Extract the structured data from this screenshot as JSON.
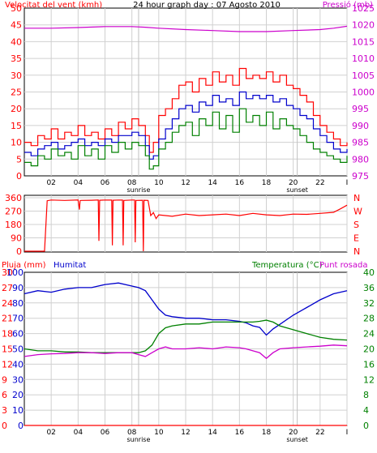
{
  "chart_data": [
    {
      "type": "line",
      "title": "24 hour graph day : 07 Agosto 2010",
      "ylabel_left": "Velocitat del vent (kmh)",
      "ylabel_right": "Pressió (mb)",
      "x_ticks": [
        "02",
        "04",
        "06",
        "08",
        "10",
        "12",
        "14",
        "16",
        "18",
        "20",
        "22",
        "I"
      ],
      "sun_labels": [
        {
          "text": "sunrise",
          "x": 8.5
        },
        {
          "text": "sunset",
          "x": 20.3
        }
      ],
      "xlim": [
        0,
        24
      ],
      "ylim_left": [
        0,
        50
      ],
      "ylim_right": [
        975,
        1025
      ],
      "y_ticks_left": [
        0,
        5,
        10,
        15,
        20,
        25,
        30,
        35,
        40,
        45,
        50
      ],
      "y_ticks_right": [
        975,
        980,
        985,
        990,
        995,
        1000,
        1005,
        1010,
        1015,
        1020,
        1025
      ],
      "colors": {
        "gust": "#ff0000",
        "avg": "#0000cc",
        "min": "#008000",
        "pressure": "#cc00cc",
        "grid": "#d0d0d0",
        "sun": "#c0c0c0"
      },
      "series": [
        {
          "key": "gust",
          "axis": "left",
          "x": [
            0,
            0.5,
            1,
            1.5,
            2,
            2.5,
            3,
            3.5,
            4,
            4.5,
            5,
            5.5,
            6,
            6.5,
            7,
            7.5,
            8,
            8.5,
            9,
            9.3,
            9.6,
            10,
            10.5,
            11,
            11.5,
            12,
            12.5,
            13,
            13.5,
            14,
            14.5,
            15,
            15.5,
            16,
            16.5,
            17,
            17.5,
            18,
            18.5,
            19,
            19.5,
            20,
            20.5,
            21,
            21.5,
            22,
            22.5,
            23,
            23.5,
            24
          ],
          "values": [
            10,
            9,
            12,
            11,
            14,
            11,
            13,
            12,
            15,
            12,
            13,
            11,
            14,
            12,
            16,
            14,
            17,
            15,
            12,
            7,
            10,
            18,
            20,
            23,
            27,
            28,
            25,
            29,
            27,
            31,
            28,
            30,
            27,
            32,
            29,
            30,
            29,
            31,
            28,
            30,
            27,
            26,
            24,
            22,
            18,
            15,
            13,
            11,
            9,
            10
          ]
        },
        {
          "key": "avg",
          "axis": "left",
          "x": [
            0,
            0.5,
            1,
            1.5,
            2,
            2.5,
            3,
            3.5,
            4,
            4.5,
            5,
            5.5,
            6,
            6.5,
            7,
            7.5,
            8,
            8.5,
            9,
            9.3,
            9.6,
            10,
            10.5,
            11,
            11.5,
            12,
            12.5,
            13,
            13.5,
            14,
            14.5,
            15,
            15.5,
            16,
            16.5,
            17,
            17.5,
            18,
            18.5,
            19,
            19.5,
            20,
            20.5,
            21,
            21.5,
            22,
            22.5,
            23,
            23.5,
            24
          ],
          "values": [
            7,
            6,
            8,
            9,
            10,
            8,
            9,
            10,
            11,
            9,
            10,
            9,
            11,
            10,
            12,
            12,
            13,
            12,
            9,
            5,
            6,
            11,
            14,
            17,
            20,
            21,
            19,
            22,
            21,
            24,
            22,
            23,
            21,
            25,
            23,
            24,
            23,
            24,
            22,
            23,
            21,
            20,
            18,
            17,
            14,
            12,
            10,
            8,
            7,
            8
          ]
        },
        {
          "key": "min",
          "axis": "left",
          "x": [
            0,
            0.5,
            1,
            1.5,
            2,
            2.5,
            3,
            3.5,
            4,
            4.5,
            5,
            5.5,
            6,
            6.5,
            7,
            7.5,
            8,
            8.5,
            9,
            9.3,
            9.6,
            10,
            10.5,
            11,
            11.5,
            12,
            12.5,
            13,
            13.5,
            14,
            14.5,
            15,
            15.5,
            16,
            16.5,
            17,
            17.5,
            18,
            18.5,
            19,
            19.5,
            20,
            20.5,
            21,
            21.5,
            22,
            22.5,
            23,
            23.5,
            24
          ],
          "values": [
            4,
            3,
            6,
            5,
            8,
            6,
            7,
            5,
            9,
            6,
            8,
            5,
            9,
            7,
            10,
            8,
            10,
            9,
            6,
            2,
            3,
            8,
            10,
            13,
            15,
            16,
            12,
            17,
            15,
            19,
            14,
            18,
            13,
            20,
            16,
            18,
            15,
            19,
            14,
            17,
            15,
            14,
            12,
            10,
            8,
            7,
            6,
            5,
            4,
            6
          ]
        },
        {
          "key": "pressure",
          "axis": "right",
          "x": [
            0,
            2,
            4,
            6,
            8,
            9,
            10,
            12,
            14,
            16,
            18,
            20,
            22,
            23,
            24
          ],
          "values": [
            1019,
            1019,
            1019.2,
            1019.5,
            1019.5,
            1019.3,
            1019,
            1018.6,
            1018.3,
            1018,
            1018,
            1018.3,
            1018.6,
            1019,
            1019.6
          ]
        }
      ]
    },
    {
      "type": "line",
      "ylabel_right_ticks": [
        "N",
        "W",
        "S",
        "E",
        "N"
      ],
      "y_ticks_left": [
        0,
        90,
        180,
        270,
        360
      ],
      "ylim": [
        0,
        360
      ],
      "x_ticks": [
        "02",
        "04",
        "06",
        "08",
        "10",
        "12",
        "14",
        "16",
        "18",
        "20",
        "22",
        "I"
      ],
      "xlim": [
        0,
        24
      ],
      "colors": {
        "line": "#ff0000",
        "grid": "#d0d0d0"
      },
      "series": [
        {
          "key": "direction",
          "x": [
            0,
            1.5,
            1.7,
            2,
            3,
            4,
            4.1,
            4.15,
            4.2,
            5,
            5.5,
            5.55,
            5.6,
            6,
            6.5,
            6.55,
            6.6,
            7,
            7.3,
            7.35,
            7.4,
            8,
            8.2,
            8.25,
            8.3,
            8.8,
            8.85,
            8.9,
            9.2,
            9.4,
            9.6,
            9.8,
            10,
            11,
            12,
            13,
            14,
            15,
            16,
            17,
            18,
            19,
            20,
            21,
            22,
            23,
            23.5,
            24
          ],
          "values": [
            0,
            0,
            340,
            345,
            342,
            345,
            280,
            340,
            342,
            343,
            345,
            70,
            343,
            345,
            344,
            40,
            343,
            345,
            344,
            40,
            342,
            345,
            345,
            60,
            342,
            343,
            0,
            343,
            342,
            240,
            260,
            220,
            245,
            235,
            250,
            240,
            245,
            250,
            240,
            255,
            245,
            240,
            250,
            248,
            255,
            262,
            285,
            310
          ]
        }
      ]
    },
    {
      "type": "line",
      "ylabel_left": "Pluja (mm)",
      "ylabel_left2": "Humitat",
      "ylabel_right": "Temperatura (°C)",
      "ylabel_right2": "Punt rosada",
      "x_ticks": [
        "02",
        "04",
        "06",
        "08",
        "10",
        "12",
        "14",
        "16",
        "18",
        "20",
        "22",
        "I"
      ],
      "sun_labels": [
        {
          "text": "sunrise",
          "x": 8.5
        },
        {
          "text": "sunset",
          "x": 20.3
        }
      ],
      "xlim": [
        0,
        24
      ],
      "rain_ticks": [
        0,
        3,
        6,
        9,
        12,
        15,
        18,
        21,
        24,
        27,
        30
      ],
      "humidity_ticks": [
        0,
        10,
        20,
        30,
        40,
        50,
        60,
        70,
        80,
        90,
        100
      ],
      "temp_ticks": [
        0,
        4,
        8,
        12,
        16,
        20,
        24,
        28,
        32,
        36,
        40
      ],
      "ylim_rain": [
        0,
        30
      ],
      "ylim_humidity": [
        0,
        100
      ],
      "ylim_temp": [
        0,
        40
      ],
      "colors": {
        "rain": "#ff0000",
        "humidity": "#0000cc",
        "temp": "#008000",
        "dew": "#cc00cc",
        "grid": "#d0d0d0",
        "sun": "#c0c0c0"
      },
      "series": [
        {
          "key": "rain",
          "axis": "rain",
          "x": [
            0,
            24
          ],
          "values": [
            0,
            0
          ]
        },
        {
          "key": "humidity",
          "axis": "humidity",
          "x": [
            0,
            1,
            2,
            3,
            4,
            5,
            6,
            7,
            8,
            8.5,
            9,
            9.5,
            10,
            10.5,
            11,
            12,
            13,
            14,
            15,
            16,
            16.5,
            17,
            17.5,
            18,
            18.5,
            19,
            20,
            21,
            22,
            23,
            24
          ],
          "values": [
            86,
            88,
            87,
            89,
            90,
            90,
            92,
            93,
            91,
            90,
            88,
            82,
            76,
            72,
            71,
            70,
            70,
            69,
            69,
            68,
            67,
            65,
            64,
            59,
            63,
            66,
            72,
            77,
            82,
            86,
            88
          ]
        },
        {
          "key": "temperature",
          "axis": "temp",
          "x": [
            0,
            1,
            2,
            3,
            4,
            5,
            6,
            7,
            8,
            8.5,
            9,
            9.5,
            10,
            10.5,
            11,
            12,
            13,
            14,
            15,
            16,
            16.5,
            17,
            17.5,
            18,
            18.5,
            19,
            20,
            21,
            22,
            23,
            24
          ],
          "values": [
            20,
            19.5,
            19.5,
            19.2,
            19.2,
            19,
            19,
            19,
            19,
            19,
            19.5,
            21,
            24,
            25.5,
            26,
            26.5,
            26.5,
            27,
            27,
            27,
            27,
            27,
            27.2,
            27.5,
            27,
            26,
            25,
            24,
            23,
            22.5,
            22.3
          ]
        },
        {
          "key": "dewpoint",
          "axis": "temp",
          "x": [
            0,
            1,
            2,
            3,
            4,
            5,
            6,
            7,
            8,
            8.5,
            9,
            9.5,
            10,
            10.5,
            11,
            12,
            13,
            14,
            15,
            16,
            16.5,
            17,
            17.5,
            18,
            18.5,
            19,
            20,
            21,
            22,
            23,
            24
          ],
          "values": [
            18,
            18.5,
            18.7,
            18.8,
            19,
            19,
            18.8,
            19,
            19,
            18.5,
            18,
            19,
            20,
            20.5,
            20,
            20,
            20.3,
            20,
            20.5,
            20.3,
            20,
            19.5,
            19,
            17.5,
            19,
            20,
            20.3,
            20.5,
            20.7,
            21,
            20.8
          ]
        }
      ]
    }
  ]
}
